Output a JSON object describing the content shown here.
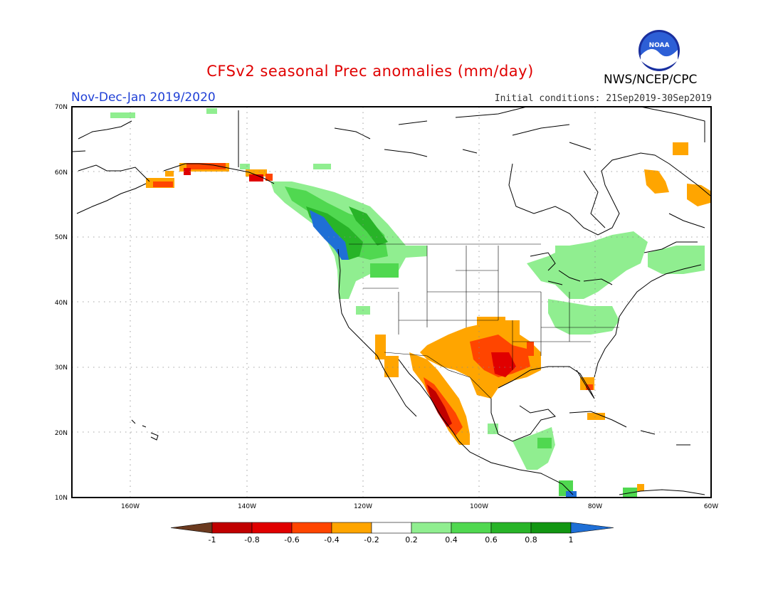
{
  "title": "CFSv2 seasonal Prec anomalies (mm/day)",
  "period": "Nov-Dec-Jan 2019/2020",
  "initial_conditions": "Initial conditions: 21Sep2019-30Sep2019",
  "agency": "NWS/NCEP/CPC",
  "logo_text": "NOAA",
  "map": {
    "region": "North America",
    "lon_range": [
      -172,
      -60
    ],
    "lat_range": [
      10,
      70
    ],
    "lon_ticks": [
      "160W",
      "140W",
      "120W",
      "100W",
      "80W",
      "60W"
    ],
    "lat_ticks": [
      "70N",
      "60N",
      "50N",
      "40N",
      "30N",
      "20N",
      "10N"
    ],
    "grid": "dotted"
  },
  "colorbar": {
    "labels": [
      "-1",
      "-0.8",
      "-0.6",
      "-0.4",
      "-0.2",
      "0.2",
      "0.4",
      "0.6",
      "0.8",
      "1"
    ],
    "colors": [
      "#6b3a1f",
      "#c00000",
      "#e00000",
      "#ff4500",
      "#ffa500",
      "#ffffff",
      "#90ee90",
      "#50d850",
      "#28b428",
      "#129612",
      "#1f6fd6"
    ],
    "units": "mm/day"
  },
  "anomaly_regions": [
    {
      "name": "pacific-northwest-wet",
      "color": "#1f6fd6"
    },
    {
      "name": "british-columbia-wet",
      "color": "#28b428"
    },
    {
      "name": "texas-dry",
      "color": "#ff4500"
    },
    {
      "name": "mexico-west-coast-dry",
      "color": "#c00000"
    },
    {
      "name": "great-lakes-wet",
      "color": "#90ee90"
    },
    {
      "name": "alaska-south-coast-dry",
      "color": "#ff4500"
    },
    {
      "name": "labrador-dry",
      "color": "#ffa500"
    }
  ]
}
